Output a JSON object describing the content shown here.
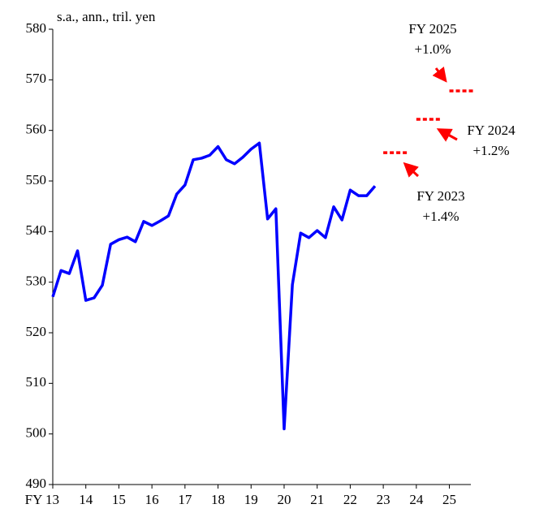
{
  "chart_data": {
    "type": "line",
    "y_unit_label": "s.a., ann., tril.  yen",
    "x": [
      13,
      13.25,
      13.5,
      13.75,
      14,
      14.25,
      14.5,
      14.75,
      15,
      15.25,
      15.5,
      15.75,
      16,
      16.25,
      16.5,
      16.75,
      17,
      17.25,
      17.5,
      17.75,
      18,
      18.25,
      18.5,
      18.75,
      19,
      19.25,
      19.5,
      19.75,
      20,
      20.25,
      20.5,
      20.75,
      21,
      21.25,
      21.5,
      21.75,
      22,
      22.25,
      22.5,
      22.75
    ],
    "series": [
      {
        "color": "#0000ff",
        "values": [
          527.1,
          532.3,
          531.7,
          536.2,
          526.4,
          526.9,
          529.4,
          537.5,
          538.4,
          538.9,
          538.0,
          542.0,
          541.2,
          542.1,
          543.1,
          547.4,
          549.2,
          554.2,
          554.5,
          555.1,
          556.8,
          554.2,
          553.4,
          554.7,
          556.3,
          557.5,
          542.5,
          544.5,
          501.0,
          529.5,
          539.7,
          538.8,
          540.2,
          538.8,
          544.9,
          542.3,
          548.2,
          547.1,
          547.1,
          549.0
        ]
      }
    ],
    "forecasts": [
      {
        "label": "FY 2023",
        "growth": "+1.4%",
        "x": [
          23,
          23.75
        ],
        "value": 555.6
      },
      {
        "label": "FY 2024",
        "growth": "+1.2%",
        "x": [
          24,
          24.75
        ],
        "value": 562.2
      },
      {
        "label": "FY 2025",
        "growth": "+1.0%",
        "x": [
          25,
          25.75
        ],
        "value": 567.8
      }
    ],
    "forecast_color": "#ff0000",
    "xlim": [
      13,
      25.65
    ],
    "xticks": [
      {
        "value": 13,
        "label": "FY 13"
      },
      14,
      15,
      16,
      17,
      18,
      19,
      20,
      21,
      22,
      23,
      24,
      25
    ],
    "ylim": [
      490,
      580
    ],
    "yticks": [
      490,
      500,
      510,
      520,
      530,
      540,
      550,
      560,
      570,
      580
    ]
  }
}
